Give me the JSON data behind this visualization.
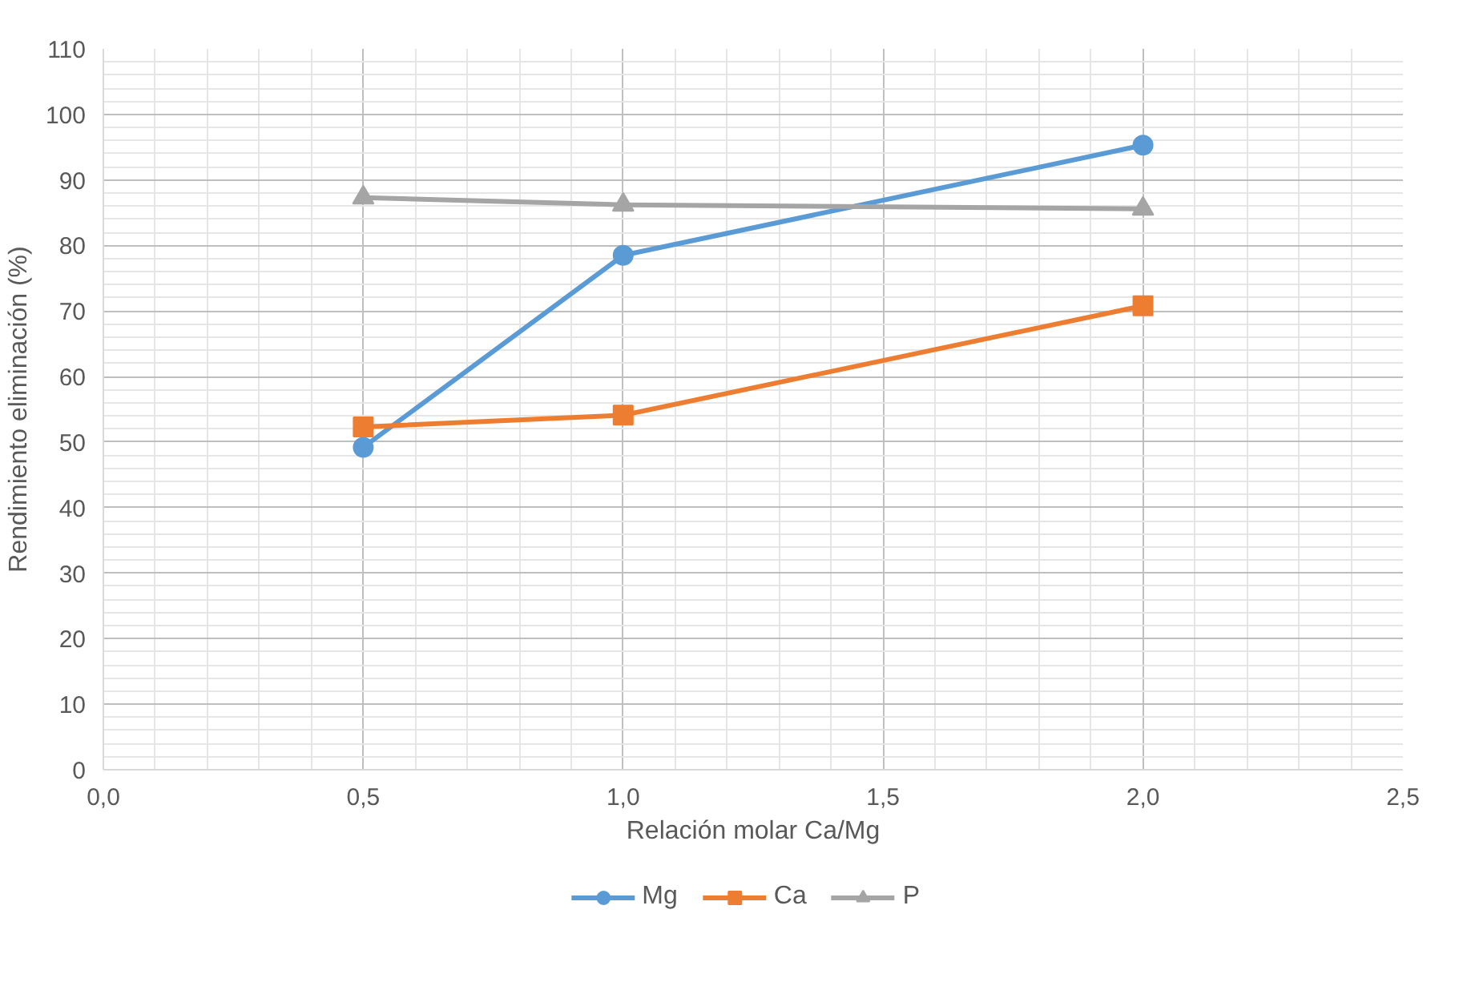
{
  "chart_data": {
    "type": "line",
    "xlabel": "Relación molar Ca/Mg",
    "ylabel": "Rendimiento eliminación (%)",
    "x": [
      0.5,
      1.0,
      2.0
    ],
    "series": [
      {
        "name": "Mg",
        "color": "#5b9bd5",
        "marker": "circle",
        "values": [
          49.2,
          78.5,
          95.3
        ]
      },
      {
        "name": "Ca",
        "color": "#ed7d31",
        "marker": "square",
        "values": [
          52.3,
          54.1,
          70.8
        ]
      },
      {
        "name": "P",
        "color": "#a5a5a5",
        "marker": "triangle",
        "values": [
          87.3,
          86.2,
          85.6
        ]
      }
    ],
    "xlim": [
      0,
      2.5
    ],
    "xticks": [
      {
        "value": 0,
        "label": "0,0"
      },
      {
        "value": 0.5,
        "label": "0,5"
      },
      {
        "value": 1,
        "label": "1,0"
      },
      {
        "value": 1.5,
        "label": "1,5"
      },
      {
        "value": 2,
        "label": "2,0"
      },
      {
        "value": 2.5,
        "label": "2,5"
      }
    ],
    "ylim": [
      0,
      110
    ],
    "yticks": [
      0,
      10,
      20,
      30,
      40,
      50,
      60,
      70,
      80,
      90,
      100,
      110
    ],
    "grid": true,
    "legend": "bottom",
    "line_style": "solid"
  }
}
